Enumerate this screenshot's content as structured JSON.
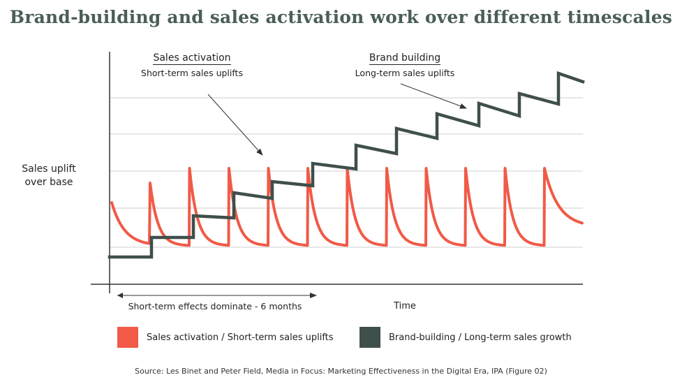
{
  "title": "Brand-building and sales activation work over different timescales",
  "colors": {
    "activation": "#f15a47",
    "brand": "#3f4f4b",
    "grid": "#cfcfcf",
    "axis": "#333333"
  },
  "chart_data": {
    "type": "line",
    "title": "Brand-building and sales activation work over different timescales",
    "ylabel": "Sales uplift over base",
    "xlabel": "Time",
    "grid": true,
    "legend_position": "bottom",
    "annotations": {
      "sales_activation": {
        "heading": "Sales activation",
        "sub": "Short-term sales uplifts"
      },
      "brand_building": {
        "heading": "Brand building",
        "sub": "Long-term sales uplifts"
      },
      "short_term_range": "Short-term effects dominate - 6 months"
    },
    "series": [
      {
        "name": "Sales activation / Short-term sales uplifts",
        "pattern": "repeated spikes decaying back toward base",
        "spikes": 12
      },
      {
        "name": "Brand-building / Long-term sales growth",
        "pattern": "stepwise sawtooth rising over time",
        "steps": 11
      }
    ]
  },
  "source": "Source: Les Binet and Peter Field, Media in Focus: Marketing Effectiveness in the Digital Era, IPA (Figure 02)"
}
